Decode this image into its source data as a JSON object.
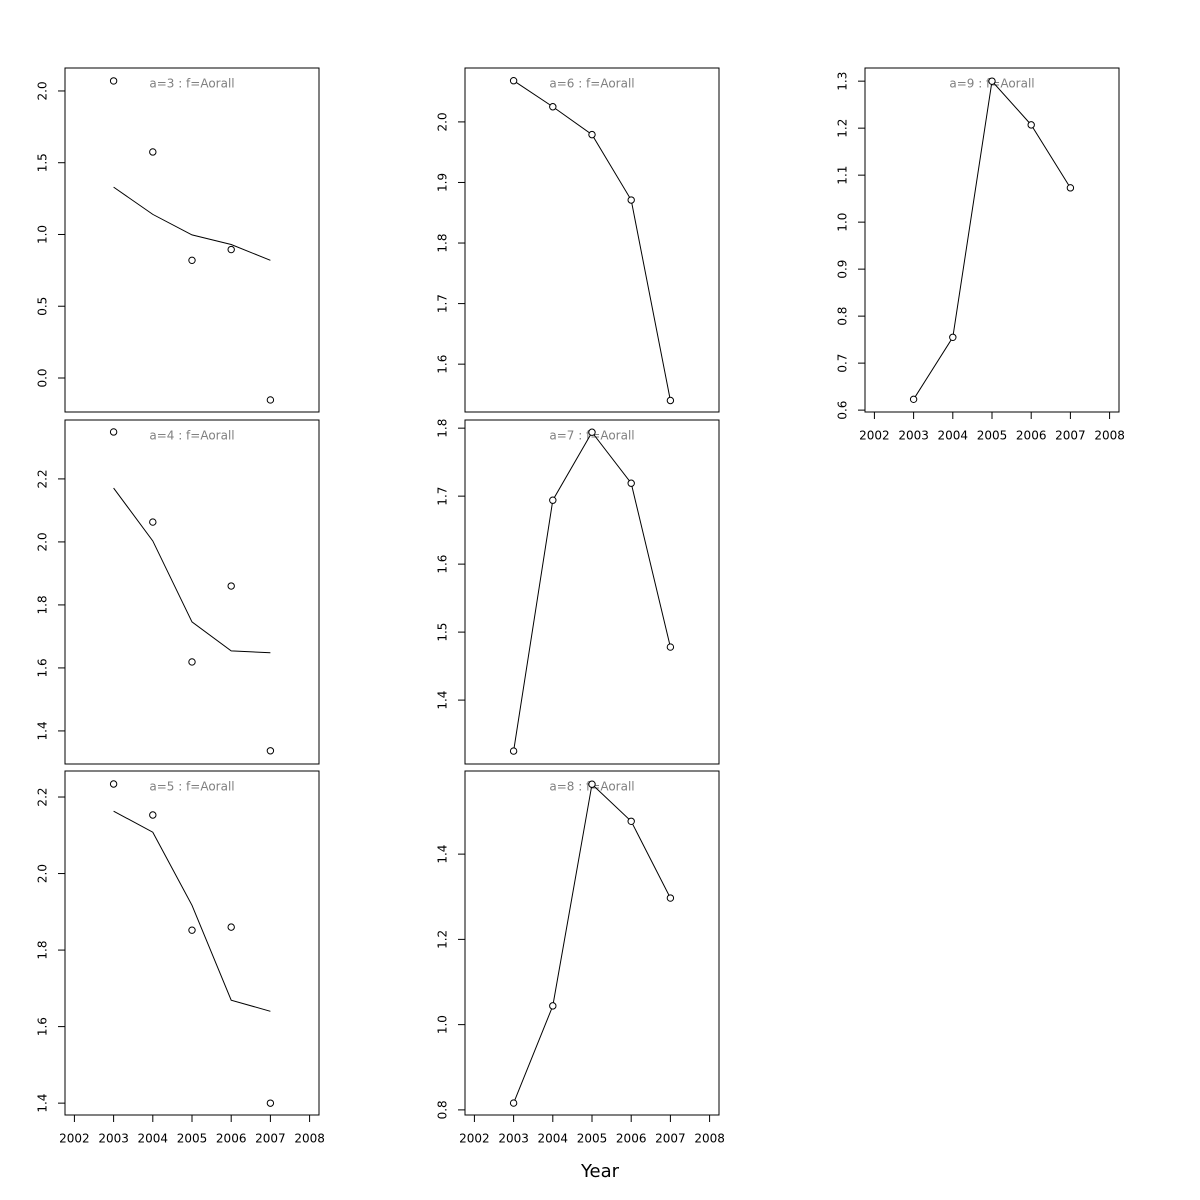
{
  "chart_data": [
    {
      "type": "line",
      "title": "a=3 : f=Aorall",
      "x": [
        2003,
        2004,
        2005,
        2006,
        2007
      ],
      "xlim": [
        2001.76,
        2008.24
      ],
      "ylim": [
        -0.237,
        2.16
      ],
      "yticks": [
        {
          "value": 0,
          "label": "0.0"
        },
        0.5,
        {
          "value": 1,
          "label": "1.0"
        },
        1.5,
        {
          "value": 2,
          "label": "2.0"
        }
      ],
      "series": [
        {
          "mode": "markers",
          "color": "#000000",
          "values": [
            2.07,
            1.575,
            0.82,
            0.895,
            -0.153
          ]
        },
        {
          "mode": "lines",
          "color": "#000000",
          "values": [
            1.33,
            1.14,
            0.997,
            0.93,
            0.82
          ]
        }
      ]
    },
    {
      "type": "line",
      "title": "a=4 : f=Aorall",
      "x": [
        2003,
        2004,
        2005,
        2006,
        2007
      ],
      "xlim": [
        2001.76,
        2008.24
      ],
      "ylim": [
        1.295,
        2.387
      ],
      "yticks": [
        1.4,
        1.6,
        1.8,
        {
          "value": 2,
          "label": "2.0"
        },
        2.2
      ],
      "series": [
        {
          "mode": "markers",
          "color": "#000000",
          "values": [
            2.349,
            2.063,
            1.619,
            1.86,
            1.337
          ]
        },
        {
          "mode": "lines",
          "color": "#000000",
          "values": [
            2.171,
            2.003,
            1.746,
            1.654,
            1.648
          ]
        }
      ]
    },
    {
      "type": "line",
      "title": "a=5 : f=Aorall",
      "x": [
        2003,
        2004,
        2005,
        2006,
        2007
      ],
      "xlim": [
        2001.76,
        2008.24
      ],
      "xticks": [
        2002,
        2003,
        2004,
        2005,
        2006,
        2007,
        2008
      ],
      "ylim": [
        1.369,
        2.268
      ],
      "yticks": [
        1.4,
        1.6,
        1.8,
        {
          "value": 2,
          "label": "2.0"
        },
        2.2
      ],
      "series": [
        {
          "mode": "markers",
          "color": "#000000",
          "values": [
            2.234,
            2.153,
            1.852,
            1.86,
            1.4
          ]
        },
        {
          "mode": "lines",
          "color": "#000000",
          "values": [
            2.163,
            2.108,
            1.917,
            1.669,
            1.64
          ]
        }
      ]
    },
    {
      "type": "line",
      "title": "a=6 : f=Aorall",
      "x": [
        2003,
        2004,
        2005,
        2006,
        2007
      ],
      "xlim": [
        2001.76,
        2008.24
      ],
      "ylim": [
        1.521,
        2.089
      ],
      "yticks": [
        1.6,
        1.7,
        1.8,
        1.9,
        {
          "value": 2,
          "label": "2.0"
        }
      ],
      "series": [
        {
          "mode": "lines+markers",
          "color": "#000000",
          "values": [
            2.068,
            2.025,
            1.979,
            1.871,
            1.54
          ]
        }
      ]
    },
    {
      "type": "line",
      "title": "a=7 : f=Aorall",
      "x": [
        2003,
        2004,
        2005,
        2006,
        2007
      ],
      "xlim": [
        2001.76,
        2008.24
      ],
      "ylim": [
        1.306,
        1.812
      ],
      "yticks": [
        1.4,
        1.5,
        1.6,
        1.7,
        1.8
      ],
      "series": [
        {
          "mode": "lines+markers",
          "color": "#000000",
          "values": [
            1.325,
            1.694,
            1.794,
            1.719,
            1.478
          ]
        }
      ]
    },
    {
      "type": "line",
      "title": "a=8 : f=Aorall",
      "xlabel": "Year",
      "x": [
        2003,
        2004,
        2005,
        2006,
        2007
      ],
      "xlim": [
        2001.76,
        2008.24
      ],
      "xticks": [
        2002,
        2003,
        2004,
        2005,
        2006,
        2007,
        2008
      ],
      "ylim": [
        0.788,
        1.595
      ],
      "yticks": [
        0.8,
        {
          "value": 1,
          "label": "1.0"
        },
        1.2,
        1.4
      ],
      "series": [
        {
          "mode": "lines+markers",
          "color": "#000000",
          "values": [
            0.816,
            1.044,
            1.564,
            1.477,
            1.297
          ]
        }
      ]
    },
    {
      "type": "line",
      "title": "a=9 : f=Aorall",
      "x": [
        2003,
        2004,
        2005,
        2006,
        2007
      ],
      "xlim": [
        2001.76,
        2008.24
      ],
      "xticks": [
        2002,
        2003,
        2004,
        2005,
        2006,
        2007,
        2008
      ],
      "ylim": [
        0.596,
        1.328
      ],
      "yticks": [
        0.6,
        0.7,
        0.8,
        0.9,
        {
          "value": 1,
          "label": "1.0"
        },
        1.1,
        1.2,
        1.3
      ],
      "series": [
        {
          "mode": "lines+markers",
          "color": "#000000",
          "values": [
            0.623,
            0.755,
            1.3,
            1.207,
            1.073
          ]
        }
      ]
    }
  ]
}
